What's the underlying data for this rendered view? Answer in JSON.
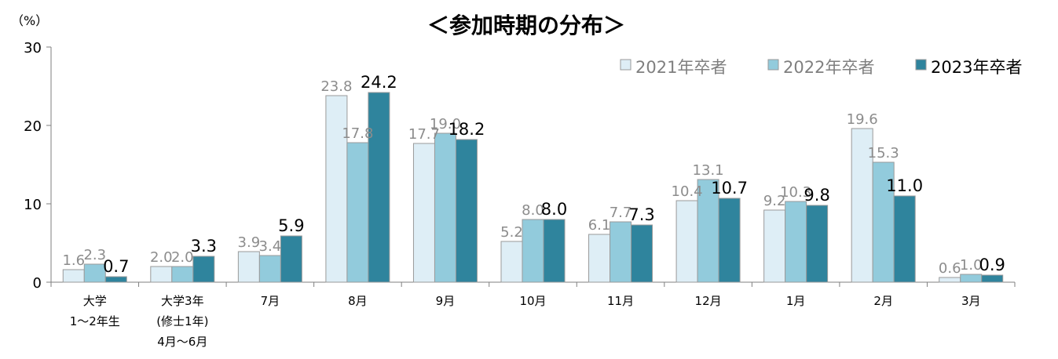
{
  "chart_data": {
    "type": "bar",
    "title": "＜参加時期の分布＞",
    "unit_label": "（%）",
    "ylim": [
      0,
      30
    ],
    "yticks": [
      "0",
      "10",
      "20",
      "30"
    ],
    "categories": [
      [
        "大学",
        "1～2年生"
      ],
      [
        "大学3年",
        "(修士1年)",
        "4月～6月"
      ],
      [
        "7月"
      ],
      [
        "8月"
      ],
      [
        "9月"
      ],
      [
        "10月"
      ],
      [
        "11月"
      ],
      [
        "12月"
      ],
      [
        "1月"
      ],
      [
        "2月"
      ],
      [
        "3月"
      ]
    ],
    "series": [
      {
        "name": "2021年卒者",
        "color": "#deeef6",
        "label_color": "#8c8c8c",
        "values": [
          1.6,
          2.0,
          3.9,
          23.8,
          17.7,
          5.2,
          6.1,
          10.4,
          9.2,
          19.6,
          0.6
        ],
        "labels": [
          "1.6",
          "2.0",
          "3.9",
          "23.8",
          "17.7",
          "5.2",
          "6.1",
          "10.4",
          "9.2",
          "19.6",
          "0.6"
        ]
      },
      {
        "name": "2022年卒者",
        "color": "#92cbdc",
        "label_color": "#8c8c8c",
        "values": [
          2.3,
          2.0,
          3.4,
          17.8,
          19.0,
          8.0,
          7.7,
          13.1,
          10.3,
          15.3,
          1.0
        ],
        "labels": [
          "2.3",
          "2.0",
          "3.4",
          "17.8",
          "19.0",
          "8.0",
          "7.7",
          "13.1",
          "10.3",
          "15.3",
          "1.0"
        ]
      },
      {
        "name": "2023年卒者",
        "color": "#2f849d",
        "label_color": "#000000",
        "values": [
          0.7,
          3.3,
          5.9,
          24.2,
          18.2,
          8.0,
          7.3,
          10.7,
          9.8,
          11.0,
          0.9
        ],
        "labels": [
          "0.7",
          "3.3",
          "5.9",
          "24.2",
          "18.2",
          "8.0",
          "7.3",
          "10.7",
          "9.8",
          "11.0",
          "0.9"
        ]
      }
    ],
    "legend_position": "top-right",
    "grid": false
  }
}
